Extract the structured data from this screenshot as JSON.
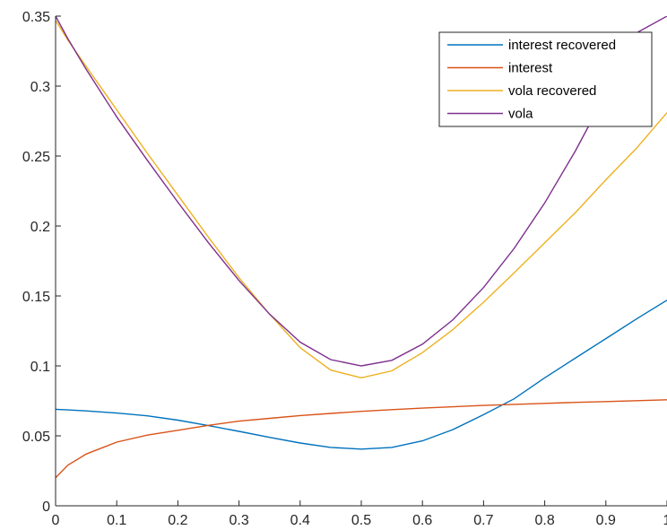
{
  "chart_data": {
    "type": "line",
    "title": "",
    "xlabel": "",
    "ylabel": "",
    "xlim": [
      0,
      1
    ],
    "ylim": [
      0,
      0.35
    ],
    "grid": false,
    "legend_placement": "top-right",
    "x_ticks": [
      {
        "value": 0,
        "label": "0"
      },
      {
        "value": 0.1,
        "label": "0.1"
      },
      {
        "value": 0.2,
        "label": "0.2"
      },
      {
        "value": 0.3,
        "label": "0.3"
      },
      {
        "value": 0.4,
        "label": "0.4"
      },
      {
        "value": 0.5,
        "label": "0.5"
      },
      {
        "value": 0.6,
        "label": "0.6"
      },
      {
        "value": 0.7,
        "label": "0.7"
      },
      {
        "value": 0.8,
        "label": "0.8"
      },
      {
        "value": 0.9,
        "label": "0.9"
      },
      {
        "value": 1,
        "label": "1"
      }
    ],
    "y_ticks": [
      {
        "value": 0,
        "label": "0"
      },
      {
        "value": 0.05,
        "label": "0.05"
      },
      {
        "value": 0.1,
        "label": "0.1"
      },
      {
        "value": 0.15,
        "label": "0.15"
      },
      {
        "value": 0.2,
        "label": "0.2"
      },
      {
        "value": 0.25,
        "label": "0.25"
      },
      {
        "value": 0.3,
        "label": "0.3"
      },
      {
        "value": 0.35,
        "label": "0.35"
      }
    ],
    "x": [
      0,
      0.02,
      0.05,
      0.1,
      0.15,
      0.2,
      0.25,
      0.3,
      0.35,
      0.4,
      0.45,
      0.5,
      0.55,
      0.6,
      0.65,
      0.7,
      0.75,
      0.8,
      0.85,
      0.9,
      0.95,
      1.0
    ],
    "series": [
      {
        "name": "interest recovered",
        "color": "#0072bd",
        "values": [
          0.069,
          0.0685,
          0.0678,
          0.0663,
          0.0643,
          0.0612,
          0.0573,
          0.0532,
          0.0489,
          0.0449,
          0.0417,
          0.0405,
          0.0417,
          0.0464,
          0.0545,
          0.0651,
          0.0765,
          0.0915,
          0.1055,
          0.1195,
          0.1335,
          0.147
        ]
      },
      {
        "name": "interest",
        "color": "#d95319",
        "values": [
          0.02,
          0.029,
          0.037,
          0.0455,
          0.0505,
          0.054,
          0.0575,
          0.0605,
          0.0625,
          0.0645,
          0.066,
          0.0675,
          0.0687,
          0.0698,
          0.0708,
          0.0717,
          0.0725,
          0.0732,
          0.0739,
          0.0745,
          0.0751,
          0.0758
        ]
      },
      {
        "name": "vola recovered",
        "color": "#edb120",
        "values": [
          0.347,
          0.333,
          0.314,
          0.283,
          0.252,
          0.222,
          0.192,
          0.163,
          0.137,
          0.113,
          0.097,
          0.0915,
          0.0965,
          0.1095,
          0.126,
          0.1455,
          0.1665,
          0.188,
          0.2095,
          0.233,
          0.2555,
          0.281
        ]
      },
      {
        "name": "vola",
        "color": "#7e2f8e",
        "values": [
          0.35,
          0.334,
          0.312,
          0.278,
          0.247,
          0.217,
          0.188,
          0.161,
          0.137,
          0.117,
          0.1045,
          0.1,
          0.104,
          0.1155,
          0.133,
          0.156,
          0.184,
          0.2165,
          0.2535,
          0.2945,
          0.338,
          0.35
        ]
      }
    ]
  }
}
